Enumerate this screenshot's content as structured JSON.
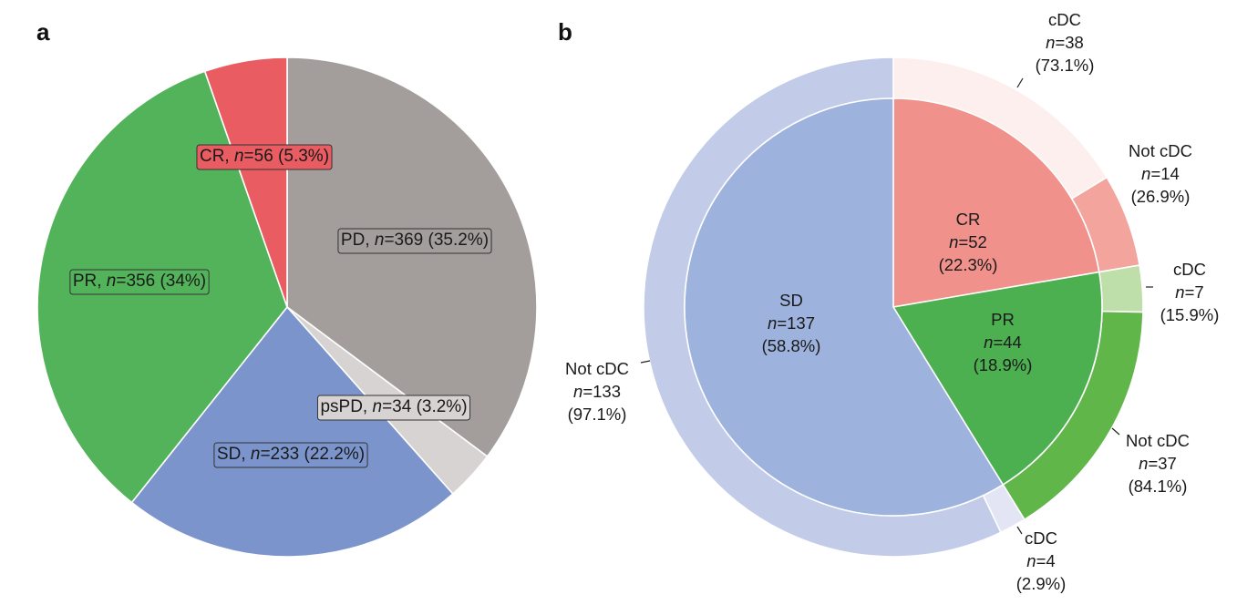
{
  "chart_data": [
    {
      "panel": "a",
      "type": "pie",
      "title": "",
      "start": "top, clockwise",
      "slices": [
        {
          "label": "PD",
          "n": 369,
          "percent": "35.2%",
          "color": "#a39e9b",
          "text": "PD, ",
          "ntext": "n",
          "rest": "=369 (35.2%)"
        },
        {
          "label": "psPD",
          "n": 34,
          "percent": "3.2%",
          "color": "#d7d3d2",
          "text": "psPD, ",
          "ntext": "n",
          "rest": "=34 (3.2%)"
        },
        {
          "label": "SD",
          "n": 233,
          "percent": "22.2%",
          "color": "#7b95cc",
          "text": "SD, ",
          "ntext": "n",
          "rest": "=233 (22.2%)"
        },
        {
          "label": "PR",
          "n": 356,
          "percent": "34%",
          "color": "#53b35a",
          "text": "PR, ",
          "ntext": "n",
          "rest": "=356 (34%)"
        },
        {
          "label": "CR",
          "n": 56,
          "percent": "5.3%",
          "color": "#e95c62",
          "text": "CR, ",
          "ntext": "n",
          "rest": "=56 (5.3%)"
        }
      ]
    },
    {
      "panel": "b",
      "type": "pie",
      "subtype": "nested donut (sunburst)",
      "start": "top, clockwise",
      "inner": [
        {
          "label": "CR",
          "n": 52,
          "percent": "(22.3%)",
          "ntext": "n=52",
          "color": "#f0918b"
        },
        {
          "label": "PR",
          "n": 44,
          "percent": "(18.9%)",
          "ntext": "n=44",
          "color": "#4caf50"
        },
        {
          "label": "SD",
          "n": 137,
          "percent": "(58.8%)",
          "ntext": "n=137",
          "color": "#9db2dc"
        }
      ],
      "outer": [
        {
          "parent": "CR",
          "label": "cDC",
          "n": 38,
          "percent": "(73.1%)",
          "ntext": "n=38",
          "color": "#fcefee"
        },
        {
          "parent": "CR",
          "label": "Not cDC",
          "n": 14,
          "percent": "(26.9%)",
          "ntext": "n=14",
          "color": "#f3a49d"
        },
        {
          "parent": "PR",
          "label": "cDC",
          "n": 7,
          "percent": "(15.9%)",
          "ntext": "n=7",
          "color": "#bedeaa"
        },
        {
          "parent": "PR",
          "label": "Not cDC",
          "n": 37,
          "percent": "(84.1%)",
          "ntext": "n=37",
          "color": "#61b64a"
        },
        {
          "parent": "SD",
          "label": "cDC",
          "n": 4,
          "percent": "(2.9%)",
          "ntext": "n=4",
          "color": "#e3e5f4"
        },
        {
          "parent": "SD",
          "label": "Not cDC",
          "n": 133,
          "percent": "(97.1%)",
          "ntext": "n=133",
          "color": "#c2cce8"
        }
      ]
    }
  ],
  "panels": {
    "a": "a",
    "b": "b"
  }
}
